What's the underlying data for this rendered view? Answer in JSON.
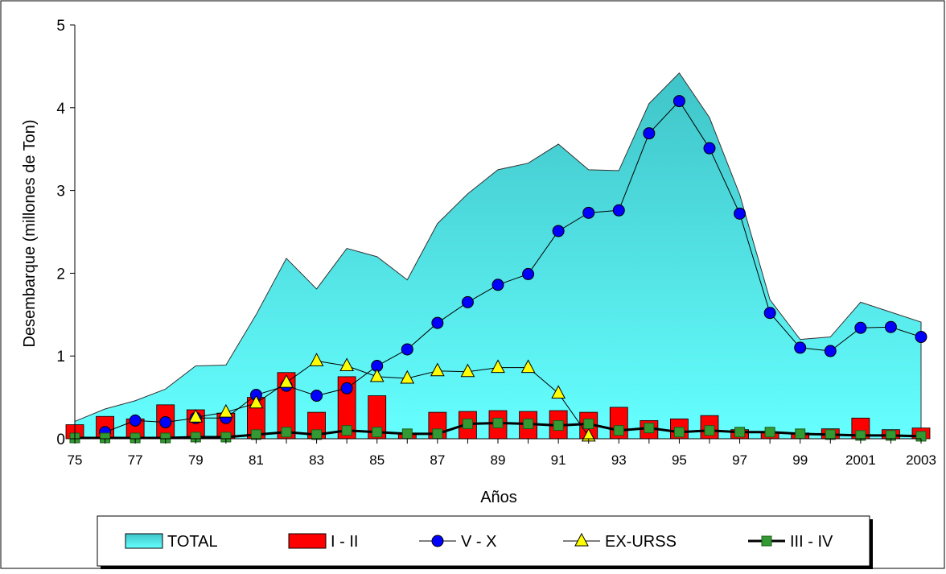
{
  "chart_data": {
    "type": "area",
    "title": "",
    "xlabel": "Años",
    "ylabel": "Desembarque (millones de Ton)",
    "ylim": [
      0,
      5
    ],
    "yticks": [
      "0",
      "1",
      "2",
      "3",
      "4",
      "5"
    ],
    "x": [
      "75",
      "76",
      "77",
      "78",
      "79",
      "80",
      "81",
      "82",
      "83",
      "84",
      "85",
      "86",
      "87",
      "88",
      "89",
      "90",
      "91",
      "92",
      "93",
      "94",
      "95",
      "96",
      "97",
      "98",
      "99",
      "2000",
      "2001",
      "2002",
      "2003"
    ],
    "xtick_labels": [
      "75",
      "77",
      "79",
      "81",
      "83",
      "85",
      "87",
      "89",
      "91",
      "93",
      "95",
      "97",
      "99",
      "2001",
      "2003"
    ],
    "grid": false,
    "legend_position": "bottom",
    "series": [
      {
        "name": "TOTAL",
        "kind": "area",
        "color": "#33CCCC",
        "values": [
          0.21,
          0.36,
          0.46,
          0.6,
          0.88,
          0.89,
          1.5,
          2.18,
          1.81,
          2.3,
          2.2,
          1.92,
          2.6,
          2.96,
          3.25,
          3.33,
          3.56,
          3.25,
          3.24,
          4.05,
          4.42,
          3.88,
          2.95,
          1.68,
          1.2,
          1.23,
          1.65,
          1.53,
          1.41
        ]
      },
      {
        "name": "I - II",
        "kind": "bar",
        "color": "#FF0000",
        "values": [
          0.17,
          0.27,
          0.24,
          0.41,
          0.35,
          0.31,
          0.5,
          0.8,
          0.32,
          0.75,
          0.52,
          0.06,
          0.32,
          0.33,
          0.34,
          0.33,
          0.34,
          0.32,
          0.38,
          0.22,
          0.24,
          0.28,
          0.11,
          0.08,
          0.07,
          0.12,
          0.25,
          0.11,
          0.13
        ]
      },
      {
        "name": "V - X",
        "kind": "line",
        "marker": "circle",
        "color": "#0000FF",
        "values": [
          null,
          0.08,
          0.22,
          0.2,
          0.25,
          0.25,
          0.53,
          0.64,
          0.52,
          0.61,
          0.88,
          1.08,
          1.4,
          1.65,
          1.86,
          1.99,
          2.51,
          2.73,
          2.76,
          3.69,
          4.08,
          3.51,
          2.72,
          1.52,
          1.1,
          1.06,
          1.34,
          1.35,
          1.23
        ]
      },
      {
        "name": "EX-URSS",
        "kind": "line",
        "marker": "triangle",
        "color": "#FFFF00",
        "values": [
          null,
          null,
          null,
          null,
          0.26,
          0.32,
          0.43,
          0.68,
          0.94,
          0.88,
          0.75,
          0.73,
          0.82,
          0.81,
          0.86,
          0.86,
          0.55,
          0.03,
          null,
          null,
          null,
          null,
          null,
          null,
          null,
          null,
          null,
          null,
          null
        ]
      },
      {
        "name": "III - IV",
        "kind": "line",
        "marker": "square",
        "color": "#339933",
        "values": [
          0.01,
          0.01,
          0.01,
          0.01,
          0.02,
          0.02,
          0.05,
          0.08,
          0.05,
          0.1,
          0.08,
          0.06,
          0.06,
          0.18,
          0.19,
          0.18,
          0.16,
          0.18,
          0.1,
          0.13,
          0.08,
          0.1,
          0.08,
          0.08,
          0.06,
          0.05,
          0.04,
          0.04,
          0.03
        ]
      }
    ]
  }
}
